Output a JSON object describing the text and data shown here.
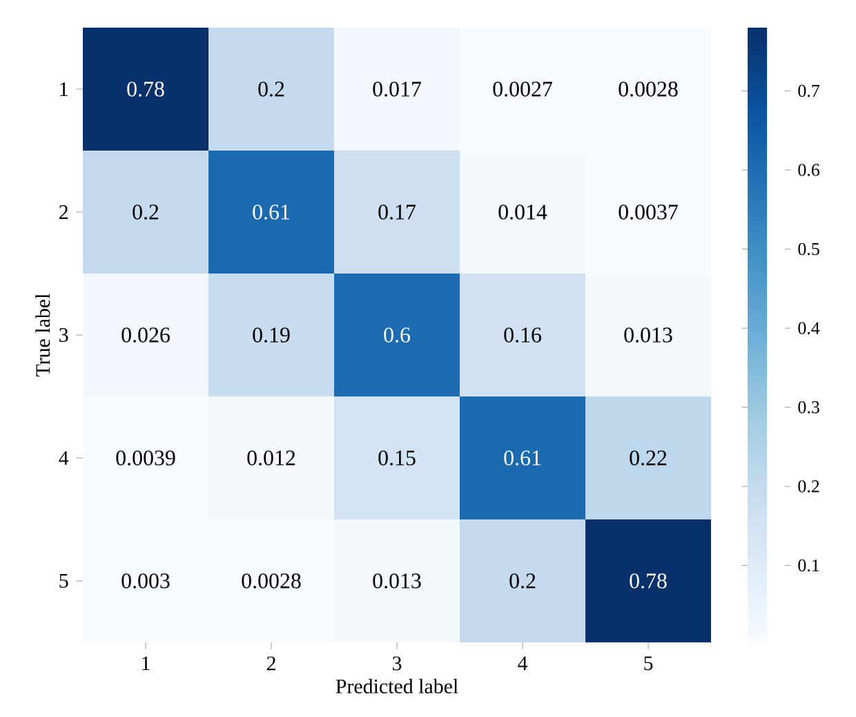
{
  "chart_data": {
    "type": "heatmap",
    "xlabel": "Predicted label",
    "ylabel": "True label",
    "categories": [
      "1",
      "2",
      "3",
      "4",
      "5"
    ],
    "y_categories": [
      "1",
      "2",
      "3",
      "4",
      "5"
    ],
    "cells": [
      [
        0.78,
        0.2,
        0.017,
        0.0027,
        0.0028
      ],
      [
        0.2,
        0.61,
        0.17,
        0.014,
        0.0037
      ],
      [
        0.026,
        0.19,
        0.6,
        0.16,
        0.013
      ],
      [
        0.0039,
        0.012,
        0.15,
        0.61,
        0.22
      ],
      [
        0.003,
        0.0028,
        0.013,
        0.2,
        0.78
      ]
    ],
    "data_labels": true,
    "clim": [
      0.0027,
      0.78
    ],
    "cticks": [
      0.1,
      0.2,
      0.3,
      0.4,
      0.5,
      0.6,
      0.7
    ]
  }
}
